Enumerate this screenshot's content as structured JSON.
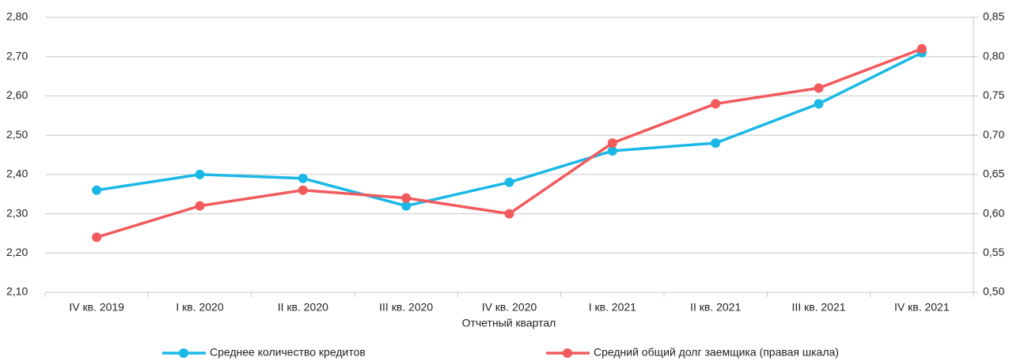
{
  "chart_data": {
    "type": "line",
    "x_label": "Отчетный квартал",
    "categories": [
      "IV кв. 2019",
      "I кв. 2020",
      "II кв. 2020",
      "III кв. 2020",
      "IV кв. 2020",
      "I кв. 2021",
      "II кв. 2021",
      "III кв. 2021",
      "IV кв. 2021"
    ],
    "series": [
      {
        "name": "Среднее количество кредитов",
        "color": "#1ab8e6",
        "values": [
          2.36,
          2.4,
          2.39,
          2.32,
          2.38,
          2.46,
          2.48,
          2.58,
          2.71
        ]
      },
      {
        "name": "Средний общий долг заемщика (правая шкала)",
        "color": "#f25a5c",
        "axis": "y2",
        "values": [
          0.57,
          0.61,
          0.63,
          0.62,
          0.6,
          0.69,
          0.74,
          0.76,
          0.81
        ]
      }
    ],
    "ylim": [
      2.1,
      2.8
    ],
    "yticks": [
      {
        "value": 2.1,
        "label": "2,10"
      },
      {
        "value": 2.2,
        "label": "2,20"
      },
      {
        "value": 2.3,
        "label": "2,30"
      },
      {
        "value": 2.4,
        "label": "2,40"
      },
      {
        "value": 2.5,
        "label": "2,50"
      },
      {
        "value": 2.6,
        "label": "2,60"
      },
      {
        "value": 2.7,
        "label": "2,70"
      },
      {
        "value": 2.8,
        "label": "2,80"
      }
    ],
    "y2lim": [
      0.5,
      0.85
    ],
    "y2ticks": [
      {
        "value": 0.5,
        "label": "0,50"
      },
      {
        "value": 0.55,
        "label": "0,55"
      },
      {
        "value": 0.6,
        "label": "0,60"
      },
      {
        "value": 0.65,
        "label": "0,65"
      },
      {
        "value": 0.7,
        "label": "0,70"
      },
      {
        "value": 0.75,
        "label": "0,75"
      },
      {
        "value": 0.8,
        "label": "0,80"
      },
      {
        "value": 0.85,
        "label": "0,85"
      }
    ],
    "grid": true,
    "legend": "bottom"
  }
}
